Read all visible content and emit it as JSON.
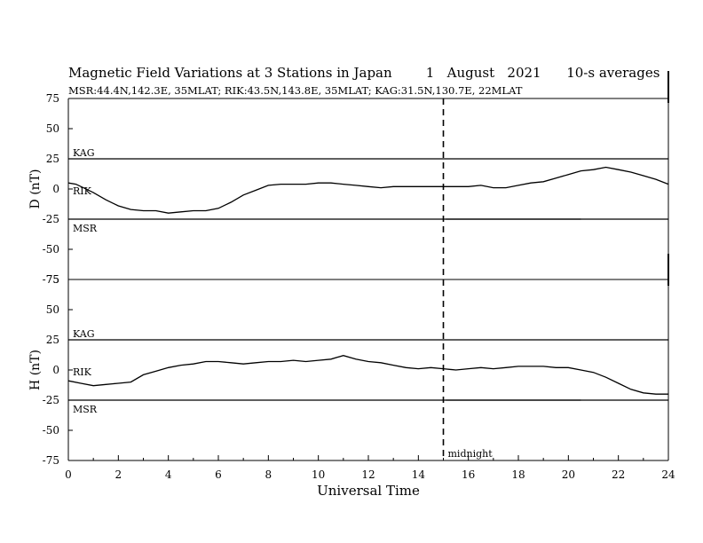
{
  "header": {
    "title": "Magnetic Field Variations at 3 Stations in Japan        1   August   2021      10-s averages",
    "subtitle": "MSR:44.4N,142.3E, 35MLAT;  RIK:43.5N,143.8E, 35MLAT;  KAG:31.5N,130.7E, 22MLAT"
  },
  "chart_data": [
    {
      "type": "line",
      "panel": "top",
      "ylabel": "D (nT)",
      "ylim": [
        -75,
        75
      ],
      "yticks": [
        "75",
        "50",
        "25",
        "0",
        "-25",
        "-50",
        "-75"
      ],
      "reference_lines": [
        25,
        -25
      ],
      "station_labels": [
        "KAG",
        "RIK",
        "MSR"
      ],
      "series": [
        {
          "name": "RIK",
          "x": [
            0,
            0.3,
            0.6,
            1,
            1.5,
            2,
            2.5,
            3,
            3.5,
            4,
            4.5,
            5,
            5.5,
            6,
            6.5,
            7,
            7.5,
            8,
            8.5,
            9,
            9.5,
            10,
            10.5,
            11,
            11.5,
            12,
            12.5,
            13,
            13.5,
            14,
            14.5,
            15,
            15.5,
            16,
            16.5,
            17,
            17.5,
            18,
            18.5,
            19,
            19.5,
            20,
            20.5,
            21,
            21.5,
            22,
            22.5,
            23,
            23.5,
            24
          ],
          "y": [
            5,
            4,
            1,
            -3,
            -9,
            -14,
            -17,
            -18,
            -18,
            -20,
            -19,
            -18,
            -18,
            -16,
            -11,
            -5,
            -1,
            3,
            4,
            4,
            4,
            5,
            5,
            4,
            3,
            2,
            1,
            2,
            2,
            2,
            2,
            2,
            2,
            2,
            3,
            1,
            1,
            3,
            5,
            6,
            9,
            12,
            15,
            16,
            18,
            16,
            14,
            11,
            8,
            4
          ]
        },
        {
          "name": "MSR",
          "x": [
            15.1,
            16,
            17,
            18,
            19,
            20,
            20.5
          ],
          "y": [
            -25,
            -25,
            -25,
            -25,
            -25,
            -25,
            -25
          ]
        }
      ]
    },
    {
      "type": "line",
      "panel": "bottom",
      "ylabel": "H (nT)",
      "xlabel": "Universal Time",
      "xlim": [
        0,
        24
      ],
      "xticks": [
        "0",
        "2",
        "4",
        "6",
        "8",
        "10",
        "12",
        "14",
        "16",
        "18",
        "20",
        "22",
        "24"
      ],
      "ylim": [
        -75,
        75
      ],
      "yticks": [
        "75",
        "50",
        "25",
        "0",
        "-25",
        "-50",
        "-75"
      ],
      "reference_lines": [
        25,
        -25
      ],
      "station_labels": [
        "KAG",
        "RIK",
        "MSR"
      ],
      "series": [
        {
          "name": "RIK",
          "x": [
            0,
            0.5,
            1,
            1.5,
            2,
            2.5,
            3,
            3.5,
            4,
            4.5,
            5,
            5.5,
            6,
            6.5,
            7,
            7.5,
            8,
            8.5,
            9,
            9.5,
            10,
            10.5,
            11,
            11.5,
            12,
            12.5,
            13,
            13.5,
            14,
            14.5,
            15,
            15.5,
            16,
            16.5,
            17,
            17.5,
            18,
            18.5,
            19,
            19.5,
            20,
            20.5,
            21,
            21.5,
            22,
            22.5,
            23,
            23.5,
            24
          ],
          "y": [
            -9,
            -11,
            -13,
            -12,
            -11,
            -10,
            -4,
            -1,
            2,
            4,
            5,
            7,
            7,
            6,
            5,
            6,
            7,
            7,
            8,
            7,
            8,
            9,
            12,
            9,
            7,
            6,
            4,
            2,
            1,
            2,
            1,
            0,
            1,
            2,
            1,
            2,
            3,
            3,
            3,
            2,
            2,
            0,
            -2,
            -6,
            -11,
            -16,
            -19,
            -20,
            -20
          ]
        },
        {
          "name": "MSR",
          "x": [
            15.1,
            16,
            17,
            18,
            19,
            20,
            20.5
          ],
          "y": [
            -25,
            -25,
            -25,
            -25,
            -25,
            -25,
            -25
          ]
        }
      ]
    }
  ],
  "annotations": {
    "midnight_label": "midnight",
    "midnight_ut": 15
  }
}
